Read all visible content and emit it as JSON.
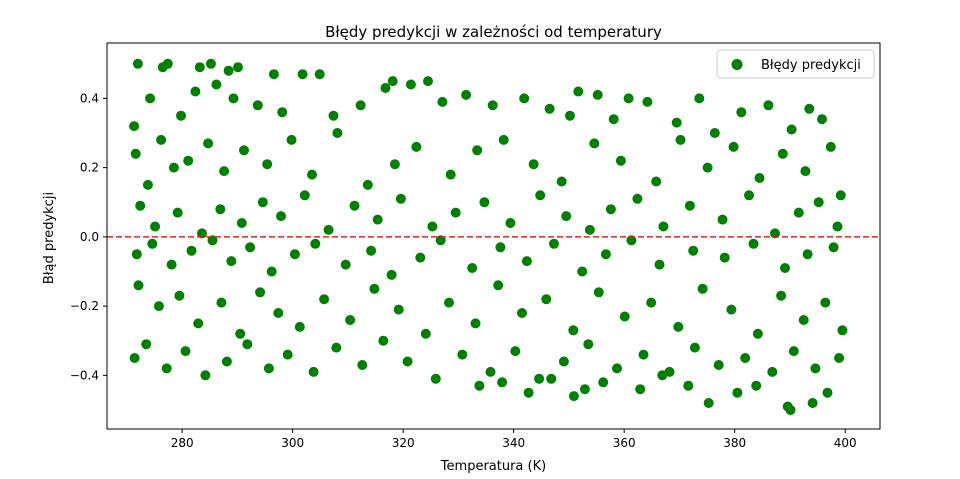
{
  "chart_data": {
    "type": "scatter",
    "title": "Błędy predykcji w zależności od temperatury",
    "xlabel": "Temperatura (K)",
    "ylabel": "Błąd predykcji",
    "xlim": [
      266.4,
      406.3
    ],
    "ylim": [
      -0.555,
      0.56
    ],
    "x_ticks": [
      280,
      300,
      320,
      340,
      360,
      380,
      400
    ],
    "x_tick_labels": [
      "280",
      "300",
      "320",
      "340",
      "360",
      "380",
      "400"
    ],
    "y_ticks": [
      -0.4,
      -0.2,
      0.0,
      0.2,
      0.4
    ],
    "y_tick_labels": [
      "−0.4",
      "−0.2",
      "0.0",
      "0.2",
      "0.4"
    ],
    "grid": false,
    "legend_position": "top-right",
    "reference_line": {
      "y": 0.0,
      "style": "dashed",
      "color": "#d62728"
    },
    "series": [
      {
        "name": "Błędy predykcji",
        "color": "#008000",
        "points": [
          [
            272.0,
            0.5
          ],
          [
            276.5,
            0.49
          ],
          [
            277.4,
            0.5
          ],
          [
            283.2,
            0.49
          ],
          [
            285.2,
            0.5
          ],
          [
            288.4,
            0.48
          ],
          [
            290.1,
            0.49
          ],
          [
            296.6,
            0.47
          ],
          [
            301.8,
            0.47
          ],
          [
            304.9,
            0.47
          ],
          [
            318.1,
            0.45
          ],
          [
            321.4,
            0.44
          ],
          [
            324.5,
            0.45
          ],
          [
            351.7,
            0.42
          ],
          [
            355.2,
            0.41
          ],
          [
            360.8,
            0.4
          ],
          [
            373.6,
            0.4
          ],
          [
            393.5,
            0.37
          ],
          [
            271.3,
            0.32
          ],
          [
            274.2,
            0.4
          ],
          [
            279.8,
            0.35
          ],
          [
            282.4,
            0.42
          ],
          [
            286.2,
            0.44
          ],
          [
            289.3,
            0.4
          ],
          [
            293.7,
            0.38
          ],
          [
            298.1,
            0.36
          ],
          [
            307.4,
            0.35
          ],
          [
            312.3,
            0.38
          ],
          [
            316.8,
            0.43
          ],
          [
            327.1,
            0.39
          ],
          [
            331.4,
            0.41
          ],
          [
            336.2,
            0.38
          ],
          [
            341.9,
            0.4
          ],
          [
            346.5,
            0.37
          ],
          [
            350.2,
            0.35
          ],
          [
            358.1,
            0.34
          ],
          [
            364.2,
            0.39
          ],
          [
            369.5,
            0.33
          ],
          [
            376.4,
            0.3
          ],
          [
            381.2,
            0.36
          ],
          [
            386.1,
            0.38
          ],
          [
            390.3,
            0.31
          ],
          [
            395.8,
            0.34
          ],
          [
            271.6,
            0.24
          ],
          [
            273.8,
            0.15
          ],
          [
            276.2,
            0.28
          ],
          [
            278.5,
            0.2
          ],
          [
            281.1,
            0.22
          ],
          [
            284.7,
            0.27
          ],
          [
            287.6,
            0.19
          ],
          [
            291.2,
            0.25
          ],
          [
            295.4,
            0.21
          ],
          [
            299.8,
            0.28
          ],
          [
            303.5,
            0.18
          ],
          [
            308.1,
            0.3
          ],
          [
            313.6,
            0.15
          ],
          [
            318.5,
            0.21
          ],
          [
            322.4,
            0.26
          ],
          [
            328.6,
            0.18
          ],
          [
            333.4,
            0.25
          ],
          [
            338.2,
            0.28
          ],
          [
            343.6,
            0.21
          ],
          [
            348.7,
            0.16
          ],
          [
            354.6,
            0.27
          ],
          [
            359.4,
            0.22
          ],
          [
            365.8,
            0.16
          ],
          [
            370.2,
            0.28
          ],
          [
            375.1,
            0.2
          ],
          [
            379.8,
            0.26
          ],
          [
            384.5,
            0.17
          ],
          [
            388.7,
            0.24
          ],
          [
            392.8,
            0.19
          ],
          [
            397.4,
            0.26
          ],
          [
            399.2,
            0.12
          ],
          [
            272.4,
            0.09
          ],
          [
            275.1,
            0.03
          ],
          [
            279.2,
            0.07
          ],
          [
            283.6,
            0.01
          ],
          [
            286.9,
            0.08
          ],
          [
            290.8,
            0.04
          ],
          [
            294.6,
            0.1
          ],
          [
            297.9,
            0.06
          ],
          [
            302.2,
            0.12
          ],
          [
            306.5,
            0.02
          ],
          [
            311.2,
            0.09
          ],
          [
            315.4,
            0.05
          ],
          [
            319.6,
            0.11
          ],
          [
            325.3,
            0.03
          ],
          [
            329.5,
            0.07
          ],
          [
            334.7,
            0.1
          ],
          [
            339.4,
            0.04
          ],
          [
            344.8,
            0.12
          ],
          [
            349.5,
            0.06
          ],
          [
            353.8,
            0.02
          ],
          [
            357.6,
            0.08
          ],
          [
            362.4,
            0.11
          ],
          [
            367.1,
            0.03
          ],
          [
            371.9,
            0.09
          ],
          [
            377.8,
            0.05
          ],
          [
            382.6,
            0.12
          ],
          [
            387.3,
            0.01
          ],
          [
            391.6,
            0.07
          ],
          [
            395.2,
            0.1
          ],
          [
            398.6,
            0.03
          ],
          [
            271.8,
            -0.05
          ],
          [
            274.6,
            -0.02
          ],
          [
            278.1,
            -0.08
          ],
          [
            281.7,
            -0.04
          ],
          [
            285.5,
            -0.01
          ],
          [
            288.9,
            -0.07
          ],
          [
            292.3,
            -0.03
          ],
          [
            296.2,
            -0.1
          ],
          [
            300.4,
            -0.05
          ],
          [
            304.1,
            -0.02
          ],
          [
            309.6,
            -0.08
          ],
          [
            314.2,
            -0.04
          ],
          [
            317.9,
            -0.11
          ],
          [
            323.1,
            -0.06
          ],
          [
            326.8,
            -0.01
          ],
          [
            332.5,
            -0.09
          ],
          [
            337.6,
            -0.03
          ],
          [
            342.4,
            -0.07
          ],
          [
            347.3,
            -0.02
          ],
          [
            352.4,
            -0.1
          ],
          [
            356.7,
            -0.05
          ],
          [
            361.3,
            -0.01
          ],
          [
            366.4,
            -0.08
          ],
          [
            372.5,
            -0.04
          ],
          [
            378.2,
            -0.06
          ],
          [
            383.4,
            -0.02
          ],
          [
            389.1,
            -0.09
          ],
          [
            393.2,
            -0.05
          ],
          [
            397.9,
            -0.03
          ],
          [
            272.1,
            -0.14
          ],
          [
            275.8,
            -0.2
          ],
          [
            279.5,
            -0.17
          ],
          [
            282.9,
            -0.25
          ],
          [
            287.1,
            -0.19
          ],
          [
            290.5,
            -0.28
          ],
          [
            294.1,
            -0.16
          ],
          [
            297.4,
            -0.22
          ],
          [
            301.3,
            -0.26
          ],
          [
            305.7,
            -0.18
          ],
          [
            310.4,
            -0.24
          ],
          [
            314.8,
            -0.15
          ],
          [
            319.2,
            -0.21
          ],
          [
            324.1,
            -0.28
          ],
          [
            328.3,
            -0.19
          ],
          [
            333.1,
            -0.25
          ],
          [
            337.2,
            -0.14
          ],
          [
            341.5,
            -0.22
          ],
          [
            345.9,
            -0.18
          ],
          [
            350.8,
            -0.27
          ],
          [
            355.4,
            -0.16
          ],
          [
            360.1,
            -0.23
          ],
          [
            364.9,
            -0.19
          ],
          [
            369.8,
            -0.26
          ],
          [
            374.2,
            -0.15
          ],
          [
            379.4,
            -0.21
          ],
          [
            384.2,
            -0.28
          ],
          [
            388.4,
            -0.17
          ],
          [
            392.5,
            -0.24
          ],
          [
            396.4,
            -0.19
          ],
          [
            399.5,
            -0.27
          ],
          [
            271.4,
            -0.35
          ],
          [
            273.5,
            -0.31
          ],
          [
            277.2,
            -0.38
          ],
          [
            280.6,
            -0.33
          ],
          [
            284.2,
            -0.4
          ],
          [
            288.1,
            -0.36
          ],
          [
            291.8,
            -0.31
          ],
          [
            295.7,
            -0.38
          ],
          [
            299.1,
            -0.34
          ],
          [
            303.8,
            -0.39
          ],
          [
            307.9,
            -0.32
          ],
          [
            312.6,
            -0.37
          ],
          [
            316.4,
            -0.3
          ],
          [
            320.8,
            -0.36
          ],
          [
            325.9,
            -0.41
          ],
          [
            330.7,
            -0.34
          ],
          [
            335.8,
            -0.39
          ],
          [
            340.3,
            -0.33
          ],
          [
            344.6,
            -0.41
          ],
          [
            349.1,
            -0.36
          ],
          [
            353.5,
            -0.31
          ],
          [
            358.7,
            -0.38
          ],
          [
            363.5,
            -0.34
          ],
          [
            368.2,
            -0.39
          ],
          [
            372.8,
            -0.32
          ],
          [
            377.1,
            -0.37
          ],
          [
            381.9,
            -0.35
          ],
          [
            386.8,
            -0.39
          ],
          [
            390.7,
            -0.33
          ],
          [
            394.6,
            -0.38
          ],
          [
            398.9,
            -0.35
          ],
          [
            333.8,
            -0.43
          ],
          [
            337.9,
            -0.42
          ],
          [
            342.7,
            -0.45
          ],
          [
            346.8,
            -0.41
          ],
          [
            350.9,
            -0.46
          ],
          [
            356.2,
            -0.42
          ],
          [
            362.9,
            -0.44
          ],
          [
            375.3,
            -0.48
          ],
          [
            380.5,
            -0.45
          ],
          [
            383.9,
            -0.43
          ],
          [
            389.6,
            -0.49
          ],
          [
            390.1,
            -0.5
          ],
          [
            394.1,
            -0.48
          ],
          [
            396.8,
            -0.45
          ],
          [
            371.6,
            -0.43
          ],
          [
            366.9,
            -0.4
          ],
          [
            352.9,
            -0.44
          ]
        ]
      }
    ]
  }
}
